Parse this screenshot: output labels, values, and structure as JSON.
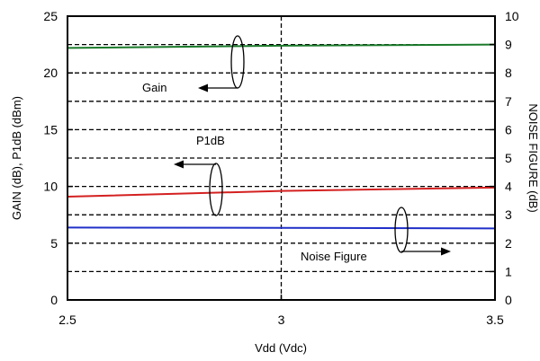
{
  "chart_data": {
    "type": "line",
    "x": [
      2.5,
      3.0,
      3.5
    ],
    "xlabel": "Vdd (Vdc)",
    "ylabel": "GAIN (dB), P1dB (dBm)",
    "y2label": "NOISE FIGURE (dB)",
    "xlim": [
      2.5,
      3.5
    ],
    "ylim": [
      0,
      25
    ],
    "y2lim": [
      0,
      10
    ],
    "x_ticks": [
      "2.5",
      "3",
      "3.5"
    ],
    "y_ticks": [
      "0",
      "5",
      "10",
      "15",
      "20",
      "25"
    ],
    "y2_ticks": [
      "0",
      "1",
      "2",
      "3",
      "4",
      "5",
      "6",
      "7",
      "8",
      "9",
      "10"
    ],
    "grid": true,
    "series": [
      {
        "name": "Gain",
        "axis": "left",
        "color": "#1a7a2a",
        "values": [
          22.2,
          22.4,
          22.5
        ]
      },
      {
        "name": "P1dB",
        "axis": "left",
        "color": "#d42020",
        "values": [
          9.1,
          9.6,
          9.9
        ]
      },
      {
        "name": "Noise Figure",
        "axis": "right",
        "color": "#2030c8",
        "values": [
          2.55,
          2.54,
          2.52
        ]
      }
    ],
    "annotations": [
      "Gain",
      "P1dB",
      "Noise Figure"
    ]
  }
}
